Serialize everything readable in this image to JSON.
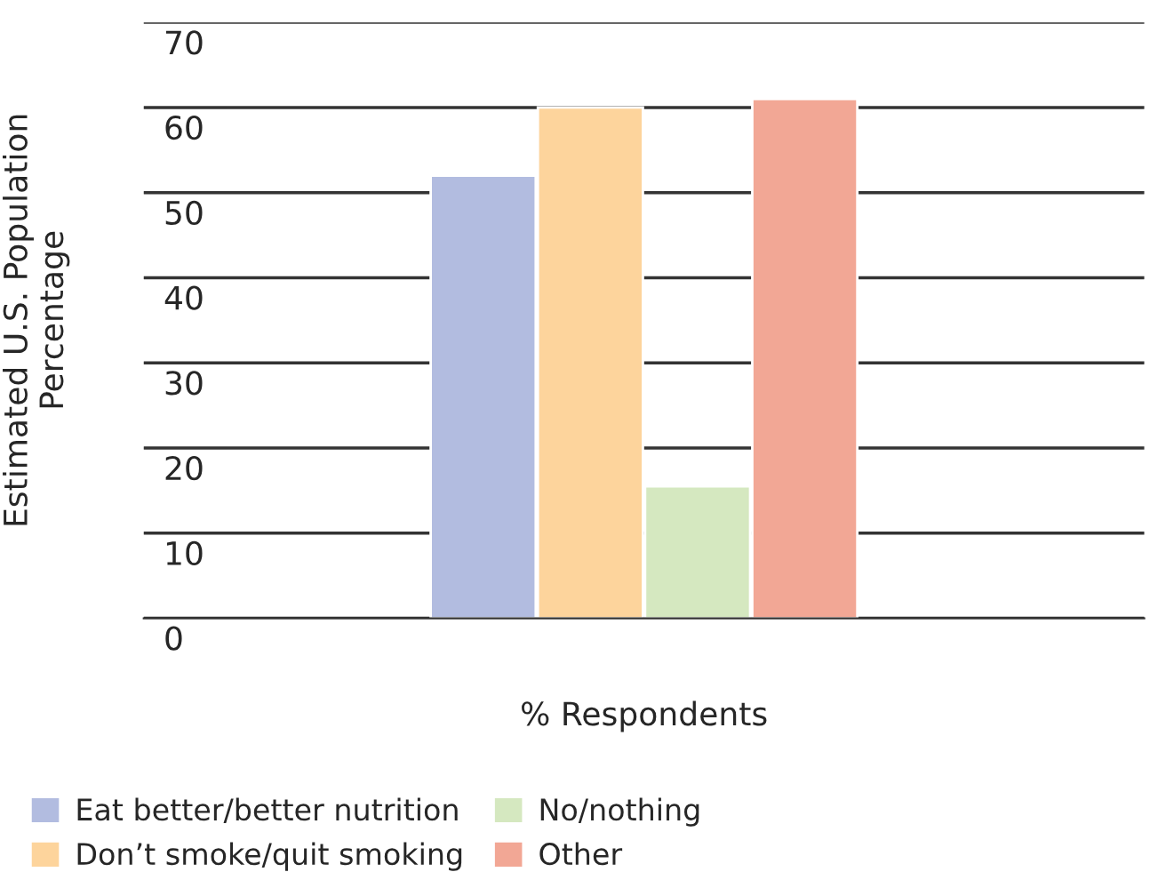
{
  "chart_data": {
    "type": "bar",
    "xlabel": "% Respondents",
    "ylabel": "Estimated U.S. Population\nPercentage",
    "categories": [
      null
    ],
    "series": [
      {
        "name": "Eat better/better nutrition",
        "color": "#b2bce0",
        "values": [
          52
        ]
      },
      {
        "name": "Don’t smoke/quit smoking",
        "color": "#fdd49c",
        "values": [
          60
        ]
      },
      {
        "name": "No/nothing",
        "color": "#d5e8c0",
        "values": [
          15.5
        ]
      },
      {
        "name": "Other",
        "color": "#f2a795",
        "values": [
          61
        ]
      }
    ],
    "ylim": [
      0,
      70
    ],
    "yticks": [
      0,
      10,
      20,
      30,
      40,
      50,
      60,
      70
    ],
    "grid": "y",
    "legend": "bottom left"
  }
}
